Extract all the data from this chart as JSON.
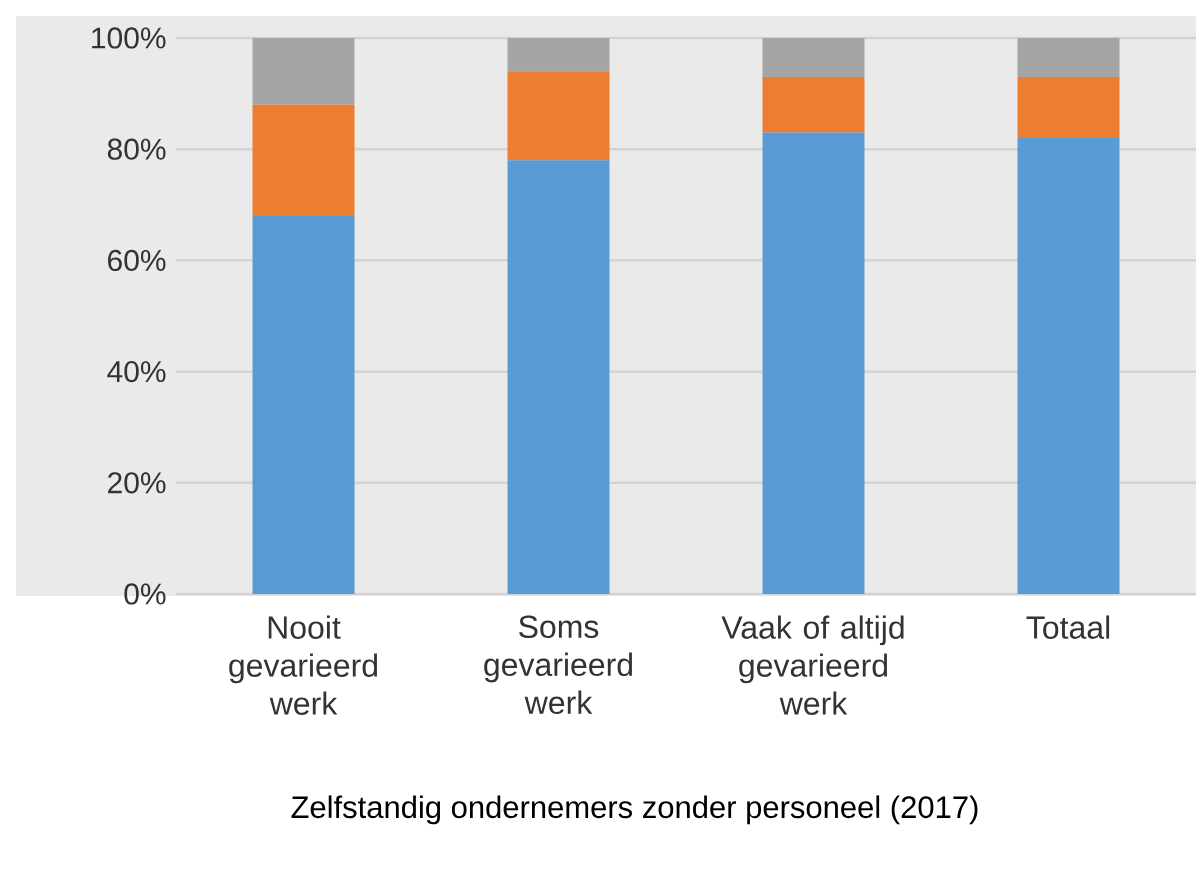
{
  "chart_data": {
    "type": "bar",
    "stacked": true,
    "xlabel": "Zelfstandig ondernemers zonder personeel (2017)",
    "categories": [
      "Nooit gevarieerd werk",
      "Soms gevarieerd werk",
      "Vaak of altijd gevarieerd werk",
      "Totaal"
    ],
    "series": [
      {
        "color": "#5b9bd5",
        "values": [
          68,
          78,
          83,
          82
        ]
      },
      {
        "color": "#ed7d31",
        "values": [
          20,
          16,
          10,
          11
        ]
      },
      {
        "color": "#a5a5a5",
        "values": [
          12,
          6,
          7,
          7
        ]
      }
    ],
    "ylim": [
      0,
      100
    ],
    "yticks": [
      {
        "value": 0,
        "label": "0%"
      },
      {
        "value": 20,
        "label": "20%"
      },
      {
        "value": 40,
        "label": "40%"
      },
      {
        "value": 60,
        "label": "60%"
      },
      {
        "value": 80,
        "label": "80%"
      },
      {
        "value": 100,
        "label": "100%"
      }
    ],
    "grid": "y"
  }
}
